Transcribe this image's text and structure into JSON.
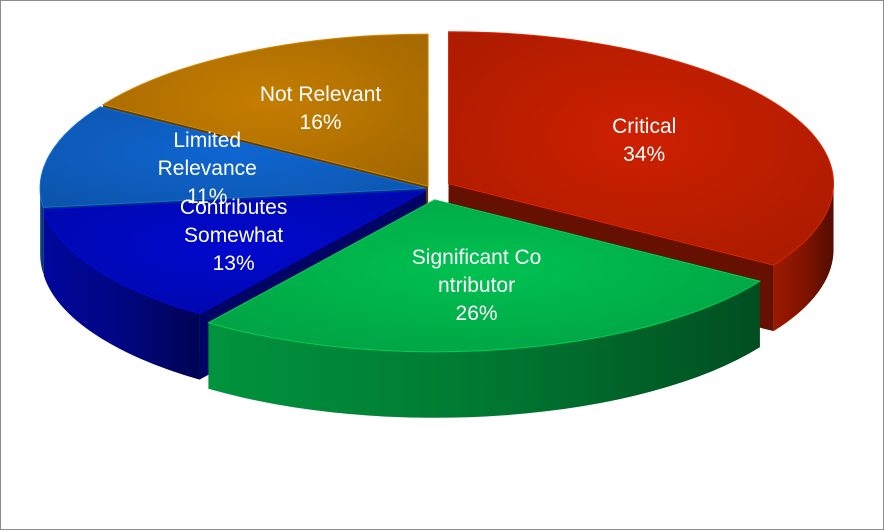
{
  "chart_data": {
    "type": "pie",
    "title": "",
    "style": "3d-exploded",
    "slices": [
      {
        "name_lines": [
          "Critical"
        ],
        "value": 34,
        "label": "34%",
        "color": "#b81d00"
      },
      {
        "name_lines": [
          "Significant Co",
          "ntributor"
        ],
        "value": 26,
        "label": "26%",
        "color": "#00ad48"
      },
      {
        "name_lines": [
          "Contributes",
          "Somewhat"
        ],
        "value": 13,
        "label": "13%",
        "color": "#0008b8"
      },
      {
        "name_lines": [
          "Limited",
          "Relevance"
        ],
        "value": 11,
        "label": "11%",
        "color": "#0d5bbb"
      },
      {
        "name_lines": [
          "Not Relevant"
        ],
        "value": 16,
        "label": "16%",
        "color": "#b07000"
      }
    ]
  }
}
